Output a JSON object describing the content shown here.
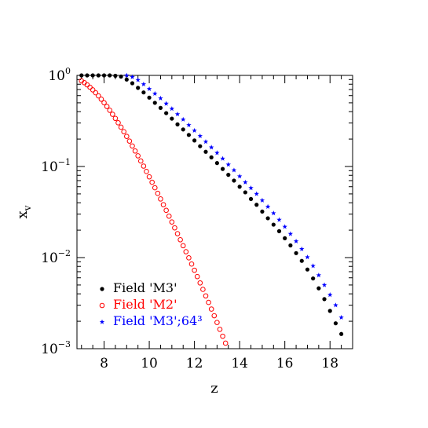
{
  "chart_data": {
    "type": "scatter",
    "xlabel": "z",
    "ylabel_main": "x",
    "ylabel_sub": "v",
    "xlim": [
      6.8,
      19.0
    ],
    "ylim": [
      0.001,
      1.0
    ],
    "yscale": "log",
    "grid": false,
    "legend_position": "bottom-left",
    "x_ticks": [
      {
        "value": 8,
        "label": "8"
      },
      {
        "value": 10,
        "label": "10"
      },
      {
        "value": 12,
        "label": "12"
      },
      {
        "value": 14,
        "label": "14"
      },
      {
        "value": 16,
        "label": "16"
      },
      {
        "value": 18,
        "label": "18"
      }
    ],
    "y_ticks": [
      {
        "value": 1,
        "base": "10",
        "exp": "0"
      },
      {
        "value": 0.1,
        "base": "10",
        "exp": "−1"
      },
      {
        "value": 0.01,
        "base": "10",
        "exp": "−2"
      },
      {
        "value": 0.001,
        "base": "10",
        "exp": "−3"
      }
    ],
    "series": [
      {
        "name": "Field 'M3'",
        "color": "#000000",
        "marker": "filled-circle",
        "x": [
          7.0,
          7.25,
          7.5,
          7.75,
          8.0,
          8.25,
          8.5,
          8.75,
          9.0,
          9.25,
          9.5,
          9.75,
          10.0,
          10.25,
          10.5,
          10.75,
          11.0,
          11.25,
          11.5,
          11.75,
          12.0,
          12.25,
          12.5,
          12.75,
          13.0,
          13.25,
          13.5,
          13.75,
          14.0,
          14.25,
          14.5,
          14.75,
          15.0,
          15.25,
          15.5,
          15.75,
          16.0,
          16.25,
          16.5,
          16.75,
          17.0,
          17.25,
          17.5,
          17.75,
          18.0,
          18.25,
          18.5
        ],
        "y": [
          1.0,
          1.0,
          1.0,
          1.0,
          1.0,
          1.0,
          0.99,
          0.97,
          0.9,
          0.82,
          0.73,
          0.65,
          0.57,
          0.5,
          0.44,
          0.385,
          0.335,
          0.29,
          0.255,
          0.222,
          0.193,
          0.167,
          0.145,
          0.126,
          0.109,
          0.094,
          0.081,
          0.07,
          0.06,
          0.052,
          0.044,
          0.038,
          0.032,
          0.027,
          0.023,
          0.0195,
          0.0163,
          0.0136,
          0.0112,
          0.0092,
          0.0074,
          0.0059,
          0.0046,
          0.0035,
          0.0026,
          0.0019,
          0.00145
        ]
      },
      {
        "name": "Field 'M2'",
        "color": "#ff0000",
        "marker": "open-circle",
        "x": [
          7.0,
          7.125,
          7.25,
          7.375,
          7.5,
          7.625,
          7.75,
          7.875,
          8.0,
          8.125,
          8.25,
          8.375,
          8.5,
          8.625,
          8.75,
          8.875,
          9.0,
          9.125,
          9.25,
          9.375,
          9.5,
          9.625,
          9.75,
          9.875,
          10.0,
          10.125,
          10.25,
          10.375,
          10.5,
          10.625,
          10.75,
          10.875,
          11.0,
          11.125,
          11.25,
          11.375,
          11.5,
          11.625,
          11.75,
          11.875,
          12.0,
          12.125,
          12.25,
          12.375,
          12.5,
          12.625,
          12.75,
          12.875,
          13.0,
          13.125,
          13.25,
          13.375,
          13.5
        ],
        "y": [
          0.872,
          0.832,
          0.788,
          0.742,
          0.694,
          0.645,
          0.596,
          0.548,
          0.501,
          0.456,
          0.414,
          0.374,
          0.337,
          0.302,
          0.27,
          0.241,
          0.214,
          0.19,
          0.168,
          0.148,
          0.131,
          0.115,
          0.101,
          0.0882,
          0.077,
          0.0671,
          0.0584,
          0.0507,
          0.044,
          0.0381,
          0.033,
          0.0285,
          0.0246,
          0.0212,
          0.0183,
          0.0157,
          0.0135,
          0.0116,
          0.00993,
          0.0085,
          0.00726,
          0.00619,
          0.00527,
          0.00448,
          0.0038,
          0.00322,
          0.00272,
          0.0023,
          0.00194,
          0.00163,
          0.00137,
          0.00115,
          0.00097
        ]
      },
      {
        "name": "Field 'M3';64³",
        "color": "#0000ff",
        "marker": "star",
        "x": [
          9.0,
          9.25,
          9.5,
          9.75,
          10.0,
          10.25,
          10.5,
          10.75,
          11.0,
          11.25,
          11.5,
          11.75,
          12.0,
          12.25,
          12.5,
          12.75,
          13.0,
          13.25,
          13.5,
          13.75,
          14.0,
          14.25,
          14.5,
          14.75,
          15.0,
          15.25,
          15.5,
          15.75,
          16.0,
          16.25,
          16.5,
          16.75,
          17.0,
          17.25,
          17.5,
          17.75,
          18.0,
          18.25,
          18.5
        ],
        "y": [
          1.0,
          0.96,
          0.89,
          0.8,
          0.71,
          0.63,
          0.56,
          0.49,
          0.43,
          0.375,
          0.328,
          0.285,
          0.248,
          0.216,
          0.187,
          0.162,
          0.141,
          0.122,
          0.105,
          0.091,
          0.078,
          0.067,
          0.058,
          0.05,
          0.0425,
          0.0362,
          0.0307,
          0.026,
          0.0218,
          0.0182,
          0.0151,
          0.0124,
          0.0101,
          0.0081,
          0.0064,
          0.005,
          0.0039,
          0.003,
          0.0022
        ]
      }
    ]
  }
}
